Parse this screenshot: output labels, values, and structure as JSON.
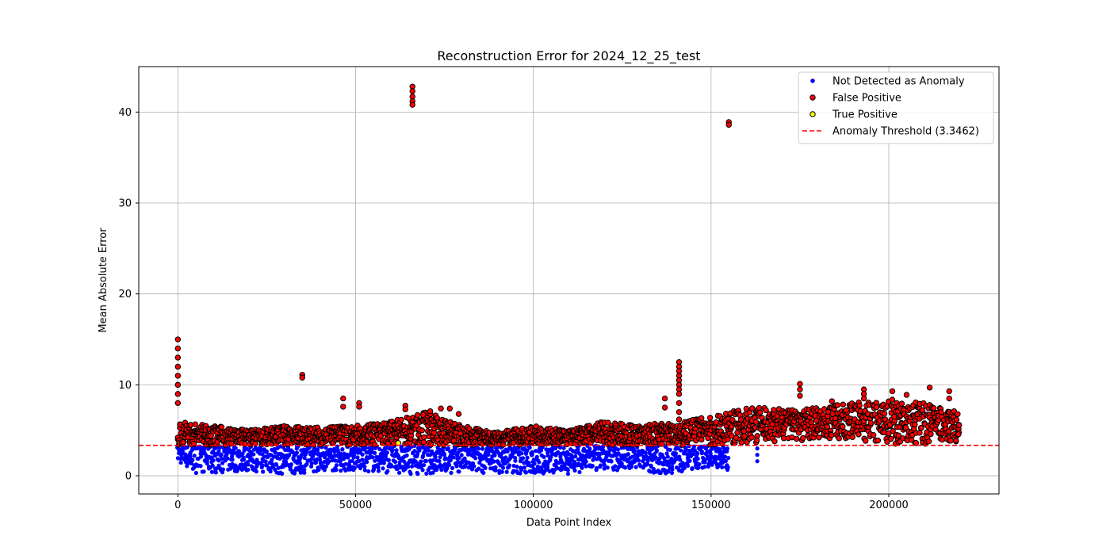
{
  "chart_data": {
    "type": "scatter",
    "title": "Reconstruction Error for 2024_12_25_test",
    "xlabel": "Data Point Index",
    "ylabel": "Mean Absolute Error",
    "xlim": [
      -11000,
      231000
    ],
    "ylim": [
      -2,
      45
    ],
    "xticks": [
      0,
      50000,
      100000,
      150000,
      200000
    ],
    "yticks": [
      0,
      10,
      20,
      30,
      40
    ],
    "grid": true,
    "legend_position": "top-right",
    "threshold": {
      "name": "Anomaly Threshold (3.3462)",
      "value": 3.3462,
      "color": "#ff0000",
      "style": "dashed"
    },
    "series": [
      {
        "name": "Not Detected as Anomaly",
        "color": "#0000ff",
        "edge": "none",
        "band_ranges": [
          [
            0,
            1.5,
            3.3
          ],
          [
            5000,
            0.3,
            3.3
          ],
          [
            10000,
            0.3,
            3.3
          ],
          [
            20000,
            0.5,
            3.3
          ],
          [
            30000,
            0.1,
            3.3
          ],
          [
            40000,
            0.5,
            3.3
          ],
          [
            50000,
            0.5,
            3.3
          ],
          [
            60000,
            0.3,
            3.3
          ],
          [
            65000,
            0.2,
            3.3
          ],
          [
            70000,
            0.2,
            3.3
          ],
          [
            80000,
            0.3,
            3.3
          ],
          [
            90000,
            0.3,
            3.3
          ],
          [
            100000,
            0.1,
            3.3
          ],
          [
            110000,
            0.2,
            3.3
          ],
          [
            120000,
            0.5,
            3.3
          ],
          [
            130000,
            0.8,
            3.3
          ],
          [
            135000,
            0.2,
            3.3
          ],
          [
            140000,
            0.3,
            3.3
          ],
          [
            150000,
            1.0,
            3.3
          ],
          [
            155000,
            0.5,
            3.3
          ]
        ],
        "points": [
          [
            163000,
            3.0
          ],
          [
            163000,
            2.3
          ],
          [
            163000,
            1.6
          ]
        ]
      },
      {
        "name": "False Positive",
        "color": "#ff0000",
        "edge": "#000000",
        "band_ranges": [
          [
            0,
            3.4,
            6.0
          ],
          [
            10000,
            3.4,
            5.5
          ],
          [
            20000,
            3.4,
            5.0
          ],
          [
            30000,
            3.4,
            5.5
          ],
          [
            40000,
            3.4,
            5.3
          ],
          [
            50000,
            3.4,
            5.5
          ],
          [
            60000,
            3.4,
            6.0
          ],
          [
            70000,
            3.4,
            7.0
          ],
          [
            80000,
            3.4,
            5.5
          ],
          [
            90000,
            3.4,
            4.8
          ],
          [
            100000,
            3.4,
            5.5
          ],
          [
            110000,
            3.4,
            5.0
          ],
          [
            120000,
            3.4,
            6.0
          ],
          [
            130000,
            3.4,
            5.5
          ],
          [
            140000,
            3.4,
            6.0
          ],
          [
            150000,
            3.4,
            6.5
          ],
          [
            160000,
            3.6,
            7.5
          ],
          [
            170000,
            3.8,
            7.5
          ],
          [
            180000,
            4.0,
            7.5
          ],
          [
            190000,
            4.0,
            8.0
          ],
          [
            200000,
            3.5,
            8.5
          ],
          [
            210000,
            3.5,
            8.0
          ],
          [
            220000,
            3.8,
            7.0
          ]
        ],
        "points": [
          [
            0,
            15.0
          ],
          [
            0,
            14.0
          ],
          [
            0,
            13.0
          ],
          [
            0,
            12.0
          ],
          [
            0,
            11.0
          ],
          [
            0,
            10.0
          ],
          [
            0,
            9.0
          ],
          [
            0,
            8.0
          ],
          [
            35000,
            11.1
          ],
          [
            35000,
            10.8
          ],
          [
            46500,
            8.5
          ],
          [
            46500,
            7.6
          ],
          [
            51000,
            8.0
          ],
          [
            51000,
            7.6
          ],
          [
            64000,
            7.7
          ],
          [
            64000,
            7.3
          ],
          [
            69000,
            6.7
          ],
          [
            71000,
            7.1
          ],
          [
            74000,
            7.4
          ],
          [
            76500,
            7.4
          ],
          [
            79000,
            6.8
          ],
          [
            66000,
            42.8
          ],
          [
            66000,
            42.3
          ],
          [
            66000,
            41.7
          ],
          [
            66000,
            41.2
          ],
          [
            66000,
            40.8
          ],
          [
            137000,
            8.5
          ],
          [
            137000,
            7.5
          ],
          [
            141000,
            12.5
          ],
          [
            141000,
            12.0
          ],
          [
            141000,
            11.5
          ],
          [
            141000,
            11.0
          ],
          [
            141000,
            10.5
          ],
          [
            141000,
            10.0
          ],
          [
            141000,
            9.5
          ],
          [
            141000,
            9.0
          ],
          [
            141000,
            8.0
          ],
          [
            141000,
            7.0
          ],
          [
            141000,
            6.2
          ],
          [
            155000,
            38.9
          ],
          [
            155000,
            38.6
          ],
          [
            175000,
            10.1
          ],
          [
            175000,
            9.5
          ],
          [
            175000,
            8.8
          ],
          [
            184000,
            8.2
          ],
          [
            188000,
            7.2
          ],
          [
            193000,
            9.5
          ],
          [
            193000,
            9.0
          ],
          [
            193000,
            8.5
          ],
          [
            201000,
            9.3
          ],
          [
            205000,
            8.9
          ],
          [
            211500,
            9.7
          ],
          [
            217000,
            9.3
          ],
          [
            217000,
            8.5
          ]
        ]
      },
      {
        "name": "True Positive",
        "color": "#ffff00",
        "edge": "#000000",
        "points": [
          [
            62000,
            3.6
          ]
        ]
      }
    ]
  }
}
